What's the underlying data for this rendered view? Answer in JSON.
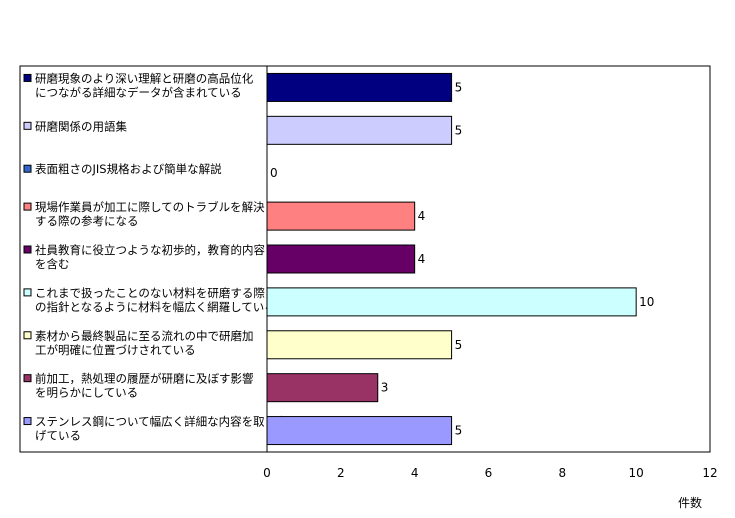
{
  "chart_data": {
    "type": "bar",
    "orientation": "horizontal",
    "categories": [
      [
        "研磨現象のより深い理解と研磨の高品位化",
        "につながる詳細なデータが含まれている"
      ],
      [
        "研磨関係の用語集"
      ],
      [
        "表面粗さのJIS規格および簡単な解説"
      ],
      [
        "現場作業員が加工に際してのトラブルを解決",
        "する際の参考になる"
      ],
      [
        "社員教育に役立つような初歩的，教育的内容",
        "を含む"
      ],
      [
        "これまで扱ったことのない材料を研磨する際",
        "の指針となるように材料を幅広く網羅している"
      ],
      [
        "素材から最終製品に至る流れの中で研磨加",
        "工が明確に位置づけされている"
      ],
      [
        "前加工，熱処理の履歴が研磨に及ぼす影響",
        "を明らかにしている"
      ],
      [
        "ステンレス鋼について幅広く詳細な内容を取り上",
        "げている"
      ]
    ],
    "values": [
      5,
      5,
      0,
      4,
      4,
      10,
      5,
      3,
      5
    ],
    "value_labels": [
      "5",
      "5",
      "0",
      "4",
      "4",
      "10",
      "5",
      "3",
      "5"
    ],
    "colors": [
      "#000080",
      "#ccccff",
      "#3366cc",
      "#ff8080",
      "#660066",
      "#ccffff",
      "#ffffcc",
      "#993366",
      "#9999ff"
    ],
    "xlim": [
      0,
      12
    ],
    "xticks": [
      0,
      2,
      4,
      6,
      8,
      10,
      12
    ],
    "xtick_labels": [
      "0",
      "2",
      "4",
      "6",
      "8",
      "10",
      "12"
    ],
    "xlabel": "件数",
    "grid": false,
    "legend": "left"
  }
}
